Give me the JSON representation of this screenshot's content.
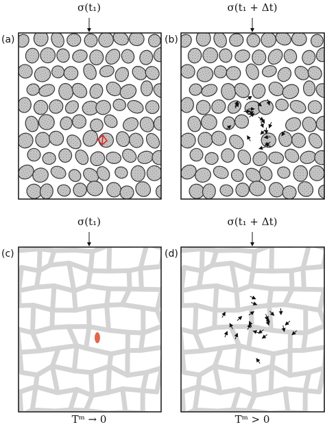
{
  "panels": [
    {
      "label": "(a)",
      "top_label": "σ(t₁)"
    },
    {
      "label": "(b)",
      "top_label": "σ(t₁ + Δt)"
    },
    {
      "label": "(c)",
      "top_label": "σ(t₁)",
      "bottom_label": "Tᵐ → 0"
    },
    {
      "label": "(d)",
      "top_label": "σ(t₁ + Δt)",
      "bottom_label": "Tᵐ > 0"
    }
  ]
}
